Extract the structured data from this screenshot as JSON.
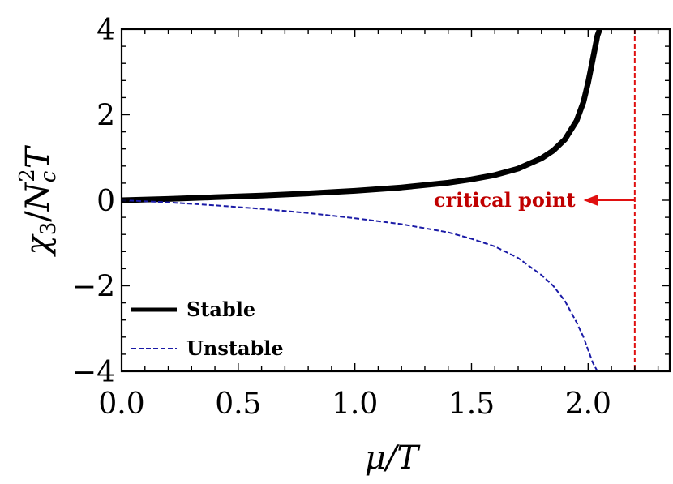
{
  "chart_data": {
    "type": "line",
    "xlabel": "μ/T",
    "ylabel": "χ3/Nc2T",
    "ylabel_parts": {
      "chi": "χ",
      "sub3": "3",
      "N": "N",
      "subc": "c",
      "sup2": "2",
      "T": "T"
    },
    "xlim": [
      0,
      2.35
    ],
    "ylim": [
      -4,
      4
    ],
    "x_ticks": [
      0.0,
      0.5,
      1.0,
      1.5,
      2.0
    ],
    "x_tick_labels": [
      "0.0",
      "0.5",
      "1.0",
      "1.5",
      "2.0"
    ],
    "y_ticks": [
      -4,
      -2,
      0,
      2,
      4
    ],
    "y_tick_labels": [
      "−4",
      "−2",
      "0",
      "2",
      "4"
    ],
    "grid": false,
    "legend_position": "bottom-left",
    "series": [
      {
        "name": "Stable",
        "style": "solid-thick",
        "color": "#000000",
        "x": [
          0.0,
          0.2,
          0.4,
          0.6,
          0.8,
          1.0,
          1.2,
          1.4,
          1.5,
          1.6,
          1.7,
          1.8,
          1.85,
          1.9,
          1.95,
          1.98,
          2.0,
          2.02,
          2.04,
          2.05
        ],
        "y": [
          0.0,
          0.03,
          0.07,
          0.11,
          0.16,
          0.22,
          0.3,
          0.41,
          0.49,
          0.59,
          0.74,
          0.98,
          1.16,
          1.42,
          1.85,
          2.3,
          2.75,
          3.3,
          3.85,
          4.0
        ]
      },
      {
        "name": "Unstable",
        "style": "dashed",
        "color": "#1a1aa6",
        "x": [
          0.0,
          0.2,
          0.4,
          0.6,
          0.8,
          1.0,
          1.2,
          1.4,
          1.5,
          1.6,
          1.7,
          1.8,
          1.85,
          1.9,
          1.95,
          1.98,
          2.0,
          2.02,
          2.04
        ],
        "y": [
          0.0,
          -0.05,
          -0.12,
          -0.2,
          -0.3,
          -0.42,
          -0.56,
          -0.75,
          -0.9,
          -1.08,
          -1.35,
          -1.75,
          -2.0,
          -2.35,
          -2.85,
          -3.2,
          -3.5,
          -3.8,
          -4.0
        ]
      }
    ],
    "critical_line": {
      "x": 2.2,
      "color": "#e01010"
    },
    "annotation": {
      "text": "critical point",
      "color": "#c00000",
      "y": 0,
      "arrow_from_x": 2.2,
      "arrow_to_x": 1.98
    }
  }
}
